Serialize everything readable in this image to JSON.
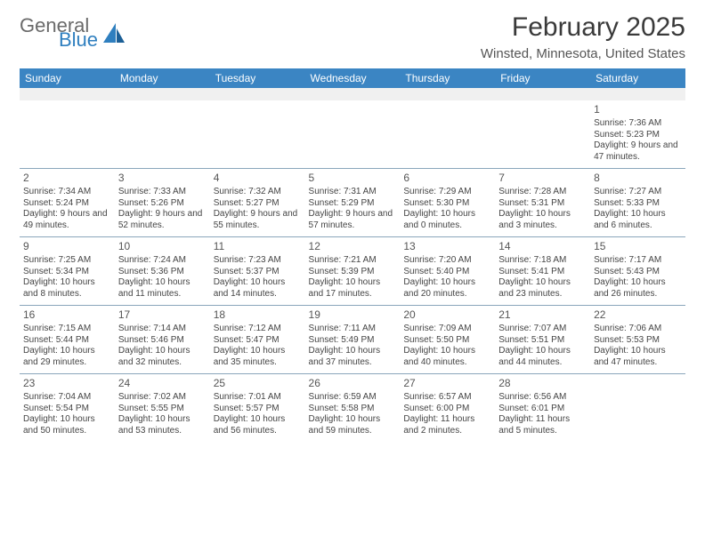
{
  "brand": {
    "word1": "General",
    "word2": "Blue"
  },
  "header": {
    "title": "February 2025",
    "location": "Winsted, Minnesota, United States"
  },
  "colors": {
    "header_bg": "#3b85c3",
    "header_fg": "#ffffff",
    "rule": "#8aa6bb",
    "spacer": "#f0f0f0",
    "brand_blue": "#2f7fbf",
    "brand_gray": "#6a6a6a"
  },
  "layout": {
    "columns": 7,
    "rows": 5,
    "cell_fontsize_pt": 7.5,
    "daynum_fontsize_pt": 9,
    "header_fontsize_pt": 9
  },
  "days": [
    "Sunday",
    "Monday",
    "Tuesday",
    "Wednesday",
    "Thursday",
    "Friday",
    "Saturday"
  ],
  "weeks": [
    [
      null,
      null,
      null,
      null,
      null,
      null,
      {
        "n": "1",
        "sr": "7:36 AM",
        "ss": "5:23 PM",
        "dl": "9 hours and 47 minutes."
      }
    ],
    [
      {
        "n": "2",
        "sr": "7:34 AM",
        "ss": "5:24 PM",
        "dl": "9 hours and 49 minutes."
      },
      {
        "n": "3",
        "sr": "7:33 AM",
        "ss": "5:26 PM",
        "dl": "9 hours and 52 minutes."
      },
      {
        "n": "4",
        "sr": "7:32 AM",
        "ss": "5:27 PM",
        "dl": "9 hours and 55 minutes."
      },
      {
        "n": "5",
        "sr": "7:31 AM",
        "ss": "5:29 PM",
        "dl": "9 hours and 57 minutes."
      },
      {
        "n": "6",
        "sr": "7:29 AM",
        "ss": "5:30 PM",
        "dl": "10 hours and 0 minutes."
      },
      {
        "n": "7",
        "sr": "7:28 AM",
        "ss": "5:31 PM",
        "dl": "10 hours and 3 minutes."
      },
      {
        "n": "8",
        "sr": "7:27 AM",
        "ss": "5:33 PM",
        "dl": "10 hours and 6 minutes."
      }
    ],
    [
      {
        "n": "9",
        "sr": "7:25 AM",
        "ss": "5:34 PM",
        "dl": "10 hours and 8 minutes."
      },
      {
        "n": "10",
        "sr": "7:24 AM",
        "ss": "5:36 PM",
        "dl": "10 hours and 11 minutes."
      },
      {
        "n": "11",
        "sr": "7:23 AM",
        "ss": "5:37 PM",
        "dl": "10 hours and 14 minutes."
      },
      {
        "n": "12",
        "sr": "7:21 AM",
        "ss": "5:39 PM",
        "dl": "10 hours and 17 minutes."
      },
      {
        "n": "13",
        "sr": "7:20 AM",
        "ss": "5:40 PM",
        "dl": "10 hours and 20 minutes."
      },
      {
        "n": "14",
        "sr": "7:18 AM",
        "ss": "5:41 PM",
        "dl": "10 hours and 23 minutes."
      },
      {
        "n": "15",
        "sr": "7:17 AM",
        "ss": "5:43 PM",
        "dl": "10 hours and 26 minutes."
      }
    ],
    [
      {
        "n": "16",
        "sr": "7:15 AM",
        "ss": "5:44 PM",
        "dl": "10 hours and 29 minutes."
      },
      {
        "n": "17",
        "sr": "7:14 AM",
        "ss": "5:46 PM",
        "dl": "10 hours and 32 minutes."
      },
      {
        "n": "18",
        "sr": "7:12 AM",
        "ss": "5:47 PM",
        "dl": "10 hours and 35 minutes."
      },
      {
        "n": "19",
        "sr": "7:11 AM",
        "ss": "5:49 PM",
        "dl": "10 hours and 37 minutes."
      },
      {
        "n": "20",
        "sr": "7:09 AM",
        "ss": "5:50 PM",
        "dl": "10 hours and 40 minutes."
      },
      {
        "n": "21",
        "sr": "7:07 AM",
        "ss": "5:51 PM",
        "dl": "10 hours and 44 minutes."
      },
      {
        "n": "22",
        "sr": "7:06 AM",
        "ss": "5:53 PM",
        "dl": "10 hours and 47 minutes."
      }
    ],
    [
      {
        "n": "23",
        "sr": "7:04 AM",
        "ss": "5:54 PM",
        "dl": "10 hours and 50 minutes."
      },
      {
        "n": "24",
        "sr": "7:02 AM",
        "ss": "5:55 PM",
        "dl": "10 hours and 53 minutes."
      },
      {
        "n": "25",
        "sr": "7:01 AM",
        "ss": "5:57 PM",
        "dl": "10 hours and 56 minutes."
      },
      {
        "n": "26",
        "sr": "6:59 AM",
        "ss": "5:58 PM",
        "dl": "10 hours and 59 minutes."
      },
      {
        "n": "27",
        "sr": "6:57 AM",
        "ss": "6:00 PM",
        "dl": "11 hours and 2 minutes."
      },
      {
        "n": "28",
        "sr": "6:56 AM",
        "ss": "6:01 PM",
        "dl": "11 hours and 5 minutes."
      },
      null
    ]
  ],
  "labels": {
    "sunrise": "Sunrise:",
    "sunset": "Sunset:",
    "daylight": "Daylight:"
  }
}
